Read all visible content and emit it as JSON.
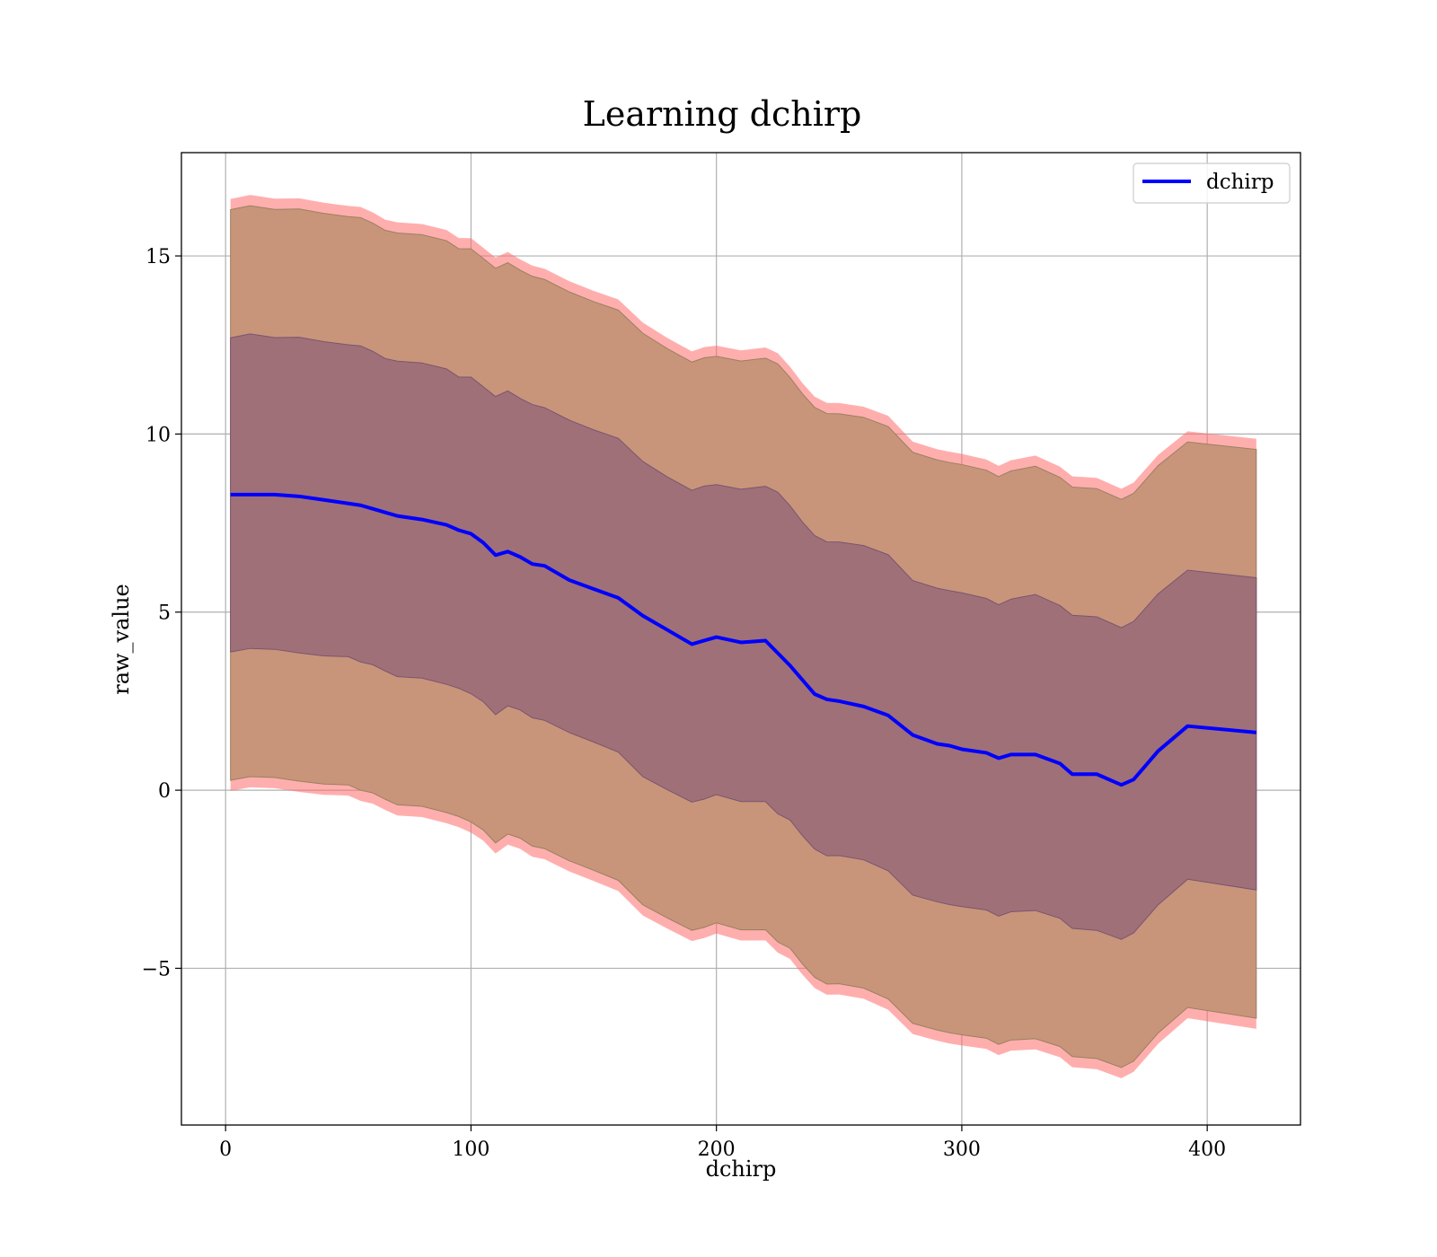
{
  "chart_data": {
    "type": "line",
    "title": "Learning dchirp",
    "xlabel": "dchirp",
    "ylabel": "raw_value",
    "xlim": [
      -18,
      438
    ],
    "ylim": [
      -9.4,
      17.9
    ],
    "xticks": [
      0,
      100,
      200,
      300,
      400
    ],
    "yticks": [
      -5,
      0,
      5,
      10,
      15
    ],
    "xtick_labels": [
      "0",
      "100",
      "200",
      "300",
      "400"
    ],
    "ytick_labels": [
      "−5",
      "0",
      "5",
      "10",
      "15"
    ],
    "grid": true,
    "legend": {
      "placement": "top-right",
      "entries": [
        "dchirp"
      ]
    },
    "colors": {
      "mean_line": "#0000ff",
      "outer_band": "#ff6b6b",
      "middle_band": "#c8957a",
      "inner_band": "#a07078"
    },
    "series": [
      {
        "name": "dchirp",
        "x": [
          2,
          10,
          20,
          30,
          40,
          50,
          55,
          60,
          65,
          70,
          80,
          90,
          95,
          100,
          105,
          110,
          115,
          120,
          125,
          130,
          140,
          150,
          160,
          170,
          180,
          190,
          195,
          200,
          210,
          220,
          225,
          230,
          235,
          240,
          245,
          250,
          260,
          270,
          280,
          290,
          295,
          300,
          310,
          315,
          320,
          330,
          340,
          345,
          355,
          365,
          370,
          380,
          392,
          420
        ],
        "y": [
          8.3,
          8.3,
          8.3,
          8.25,
          8.15,
          8.05,
          8.0,
          7.9,
          7.8,
          7.7,
          7.6,
          7.45,
          7.3,
          7.2,
          6.95,
          6.6,
          6.7,
          6.55,
          6.35,
          6.3,
          5.9,
          5.65,
          5.4,
          4.9,
          4.5,
          4.1,
          4.2,
          4.3,
          4.15,
          4.2,
          3.85,
          3.5,
          3.1,
          2.7,
          2.55,
          2.5,
          2.35,
          2.1,
          1.55,
          1.3,
          1.25,
          1.15,
          1.05,
          0.9,
          1.0,
          1.0,
          0.75,
          0.45,
          0.45,
          0.15,
          0.3,
          1.1,
          1.8,
          1.62
        ]
      }
    ],
    "bands": {
      "inner": {
        "lower_offset": -4.4,
        "upper_offset": 4.4
      },
      "middle": {
        "lower_offset": -8.0,
        "upper_offset": 8.0
      },
      "outer": {
        "lower_offset": -8.3,
        "upper_offset": 8.3
      }
    }
  }
}
